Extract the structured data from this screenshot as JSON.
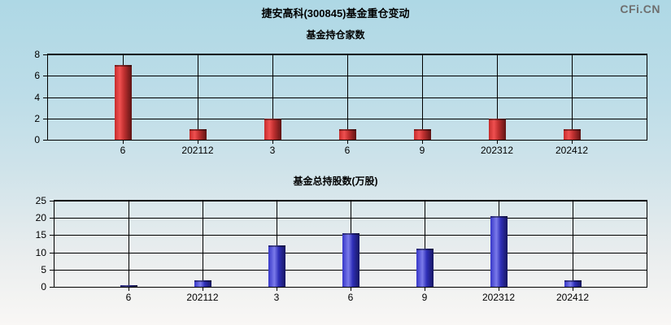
{
  "header": {
    "title": "捷安高科(300845)基金重仓变动",
    "logo": "CFi.CN"
  },
  "colors": {
    "background_top": "#aed8e5",
    "background_bottom": "#f9f7f5",
    "grid": "#000000",
    "bar_red": "#e03030",
    "bar_blue": "#3535c8",
    "logo_text": "#6f6f6f"
  },
  "chart_data": [
    {
      "type": "bar",
      "title": "基金持仓家数",
      "categories": [
        "6",
        "202112",
        "3",
        "6",
        "9",
        "202312",
        "202412"
      ],
      "values": [
        7,
        1,
        2,
        1,
        1,
        2,
        1
      ],
      "ylim": [
        0,
        8
      ],
      "ytick_step": 2,
      "yticks": [
        0,
        2,
        4,
        6,
        8
      ],
      "bar_color": "red",
      "grid": "on",
      "legend": "none"
    },
    {
      "type": "bar",
      "title": "基金总持股数(万股)",
      "categories": [
        "6",
        "202112",
        "3",
        "6",
        "9",
        "202312",
        "202412"
      ],
      "values": [
        0.4,
        2,
        12,
        15.5,
        11.2,
        20.5,
        2
      ],
      "ylim": [
        0,
        25
      ],
      "ytick_step": 5,
      "yticks": [
        0,
        5,
        10,
        15,
        20,
        25
      ],
      "bar_color": "blue",
      "grid": "on",
      "legend": "none"
    }
  ]
}
